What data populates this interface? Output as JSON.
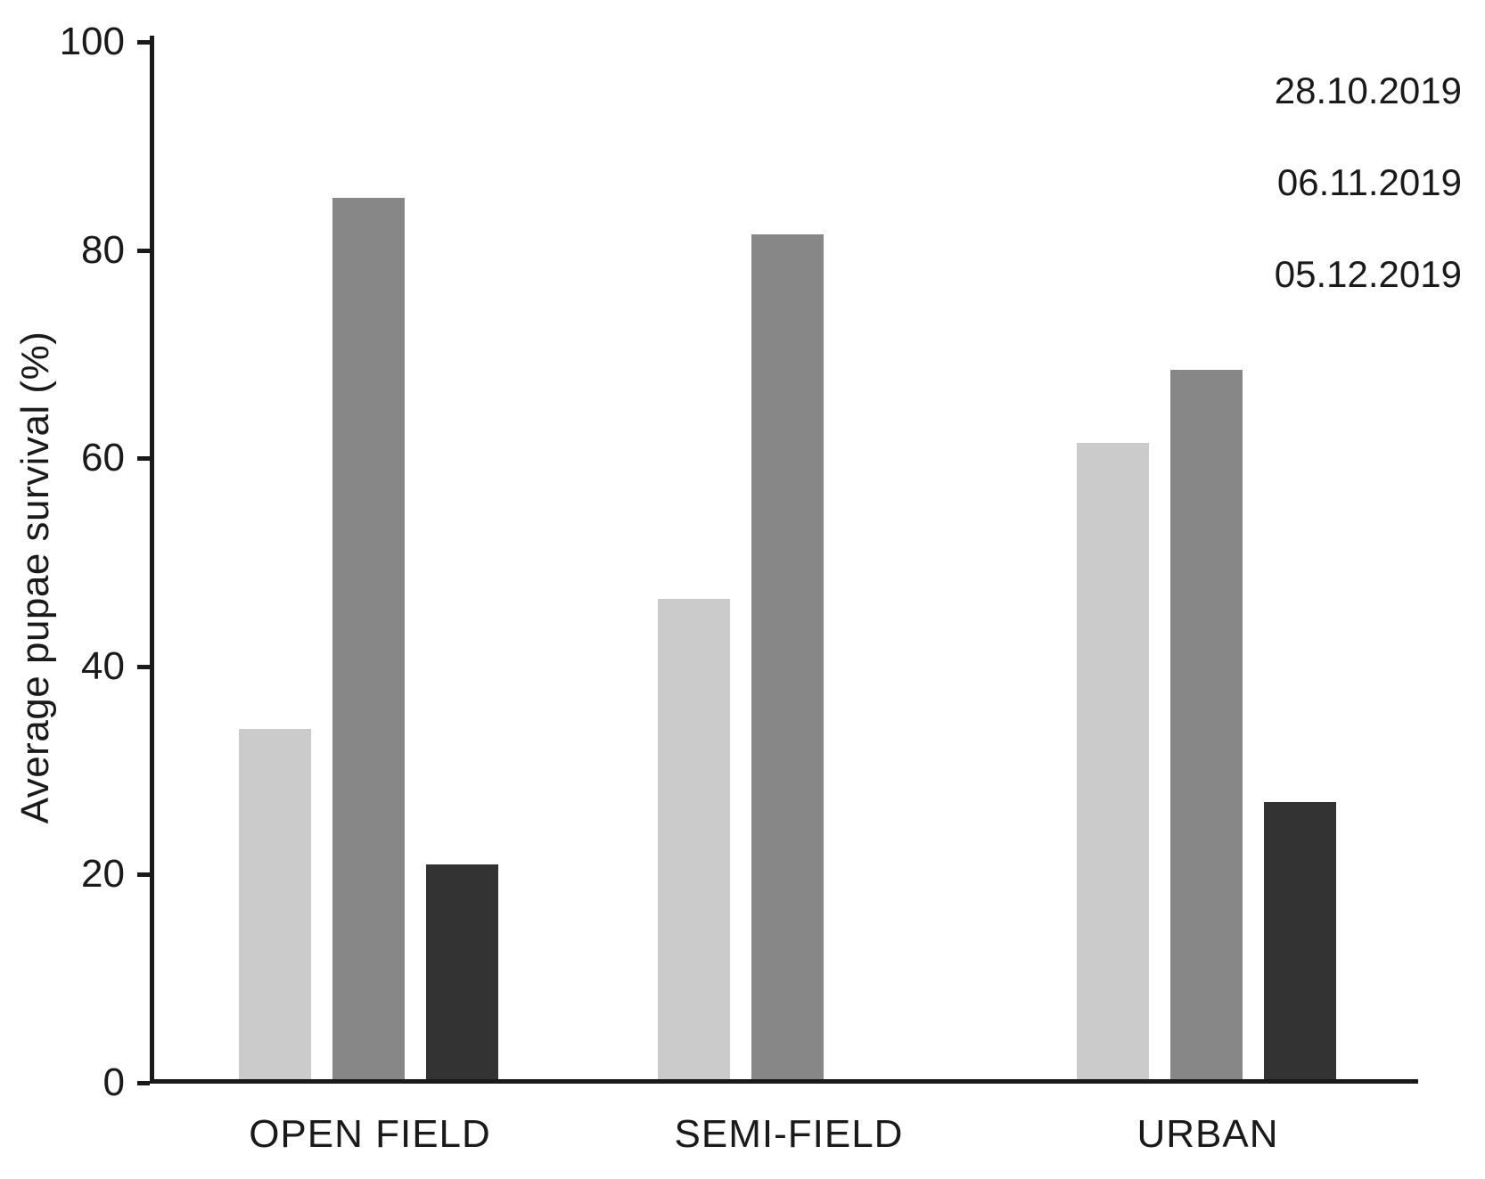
{
  "chart_data": {
    "type": "bar",
    "title": "",
    "ylabel": "Average pupae survival (%)",
    "xlabel": "",
    "ylim": [
      0,
      100
    ],
    "yticks": [
      0,
      20,
      40,
      60,
      80,
      100
    ],
    "grid": false,
    "legend_position": "top-right",
    "categories": [
      "OPEN FIELD",
      "SEMI-FIELD",
      "URBAN"
    ],
    "series": [
      {
        "name": "28.10.2019",
        "color": "#cbcbcb",
        "values": [
          34,
          46.5,
          61.5
        ]
      },
      {
        "name": "06.11.2019",
        "color": "#878787",
        "values": [
          85,
          81.5,
          68.5
        ]
      },
      {
        "name": "05.12.2019",
        "color": "#333333",
        "values": [
          21,
          null,
          27
        ]
      }
    ],
    "colors": {
      "axis": "#1a1a1a",
      "text": "#1a1a1a",
      "background": "#ffffff"
    }
  }
}
